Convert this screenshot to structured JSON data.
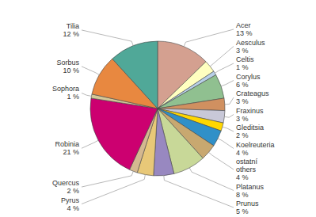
{
  "chart_data": {
    "type": "pie",
    "categories": [
      "Acer",
      "Aesculus",
      "Celtis",
      "Corylus",
      "Crateagus",
      "Fraxinus",
      "Gleditsia",
      "Koelreuteria",
      "ostatní\nothers",
      "Platanus",
      "Prunus",
      "Pyrus",
      "Quercus",
      "Robinia",
      "Sophora",
      "Sorbus",
      "Tilia"
    ],
    "values": [
      13,
      3,
      1,
      6,
      3,
      3,
      2,
      4,
      4,
      8,
      5,
      4,
      2,
      21,
      1,
      10,
      12
    ],
    "value_labels": [
      "13 %",
      "3 %",
      "1 %",
      "6 %",
      "3 %",
      "3 %",
      "2 %",
      "4 %",
      "4 %",
      "8 %",
      "5 %",
      "4 %",
      "2 %",
      "21 %",
      "1 %",
      "10 %",
      "12 %"
    ],
    "colors": [
      "#d4a090",
      "#ffffc0",
      "#b8d0e8",
      "#90c090",
      "#d09060",
      "#c8c8d8",
      "#ffd700",
      "#3090c8",
      "#c8a870",
      "#c8d898",
      "#9888c0",
      "#e8c878",
      "#d4b890",
      "#cc0070",
      "#d4c898",
      "#e88840",
      "#50a898"
    ],
    "data_labels": true
  }
}
